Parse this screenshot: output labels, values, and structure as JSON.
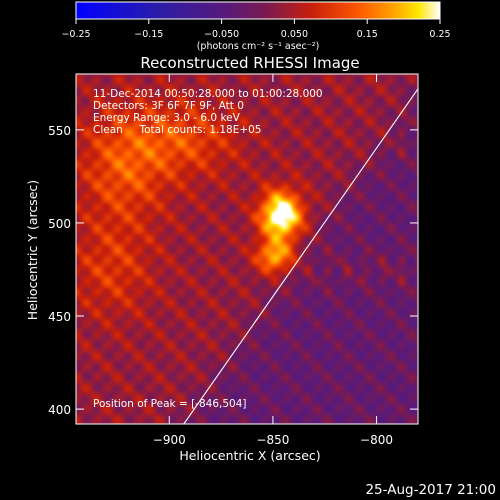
{
  "chart_data": {
    "type": "heatmap",
    "title": "Reconstructed RHESSI Image",
    "xlabel": "Heliocentric X (arcsec)",
    "ylabel": "Heliocentric Y (arcsec)",
    "xlim": [
      -945,
      -780
    ],
    "ylim": [
      392,
      580
    ],
    "x_ticks": [
      -900,
      -850,
      -800
    ],
    "x_tick_labels": [
      "−900",
      "−850",
      "−800"
    ],
    "y_ticks": [
      400,
      450,
      500,
      550
    ],
    "y_tick_labels": [
      "400",
      "450",
      "500",
      "550"
    ],
    "colorbar": {
      "min": -0.25,
      "max": 0.25,
      "ticks": [
        -0.25,
        -0.15,
        -0.05,
        0.05,
        0.15,
        0.25
      ],
      "tick_labels": [
        "−0.25",
        "−0.15",
        "−0.050",
        "0.050",
        "0.15",
        "0.25"
      ],
      "label": "(photons cm⁻² s⁻¹ asec⁻²)"
    },
    "annotations": [
      "11-Dec-2014 00:50:28.000 to 01:00:28.000",
      "Detectors: 3F 6F 7F 9F, Att 0",
      "Energy Range: 3.0 - 6.0 keV",
      "Clean     Total counts: 1.18E+05"
    ],
    "peak_label": "Position of Peak = [-846,504]",
    "peak": {
      "x": -846,
      "y": 504
    },
    "limb_line": [
      {
        "x": -893,
        "y": 392
      },
      {
        "x": -775,
        "y": 580
      }
    ],
    "sources": [
      {
        "x": -846,
        "y": 504,
        "amp": 0.26,
        "sx": 7,
        "sy": 9
      },
      {
        "x": -849,
        "y": 482,
        "amp": 0.16,
        "sx": 6,
        "sy": 6
      },
      {
        "x": -922,
        "y": 530,
        "amp": 0.09,
        "sx": 15,
        "sy": 22
      },
      {
        "x": -893,
        "y": 545,
        "amp": 0.08,
        "sx": 18,
        "sy": 14
      },
      {
        "x": -928,
        "y": 475,
        "amp": 0.06,
        "sx": 14,
        "sy": 18
      }
    ],
    "timestamp": "25-Aug-2017 21:00"
  }
}
